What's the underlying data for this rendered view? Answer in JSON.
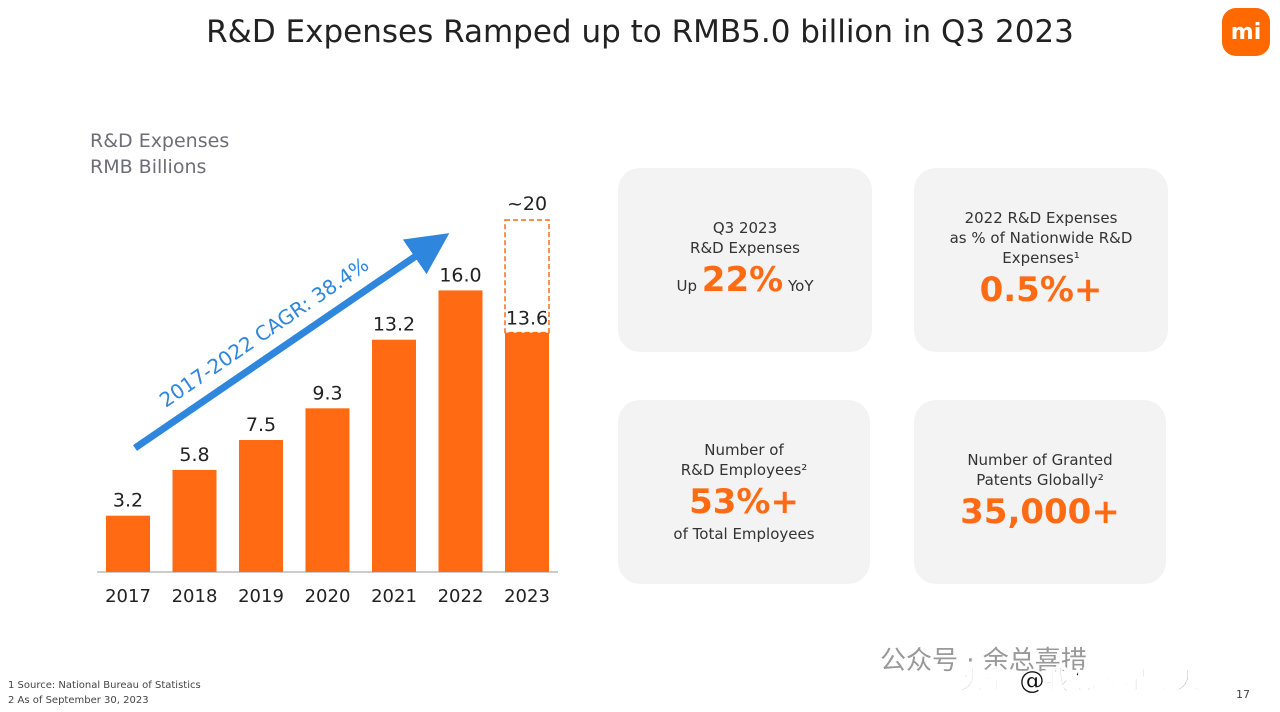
{
  "title": "R&D Expenses Ramped up to RMB5.0 billion in Q3 2023",
  "logo": "mi",
  "chart_data": {
    "type": "bar",
    "title": "R&D Expenses",
    "ylabel": "RMB Billions",
    "categories": [
      "2017",
      "2018",
      "2019",
      "2020",
      "2021",
      "2022",
      "2023"
    ],
    "values": [
      3.2,
      5.8,
      7.5,
      9.3,
      13.2,
      16.0,
      13.6
    ],
    "labels": [
      "3.2",
      "5.8",
      "7.5",
      "9.3",
      "13.2",
      "16.0",
      "13.6"
    ],
    "estimate": {
      "category": "2023",
      "value": 20,
      "label": "~20"
    },
    "annotation": "2017-2022 CAGR: 38.4%",
    "ylim": [
      0,
      22
    ],
    "colors": {
      "bar": "#ff6a13",
      "arrow": "#2f86dd"
    }
  },
  "cards": [
    {
      "lines": [
        "Q3 2023",
        "R&D Expenses"
      ],
      "pre": "Up",
      "big": "22%",
      "post": "YoY"
    },
    {
      "lines": [
        "2022 R&D Expenses",
        "as % of Nationwide R&D",
        "Expenses¹"
      ],
      "big": "0.5%+"
    },
    {
      "lines": [
        "Number of",
        "R&D Employees²"
      ],
      "big": "53%+",
      "after": "of Total Employees"
    },
    {
      "lines": [
        "Number of Granted",
        "Patents Globally²"
      ],
      "big": "35,000+"
    }
  ],
  "footnotes": [
    "1    Source: National Bureau of Statistics",
    "2    As of September 30, 2023"
  ],
  "watermarks": [
    "公众号 · 余总喜措",
    "头条 @我想要星期天"
  ],
  "page": "17"
}
